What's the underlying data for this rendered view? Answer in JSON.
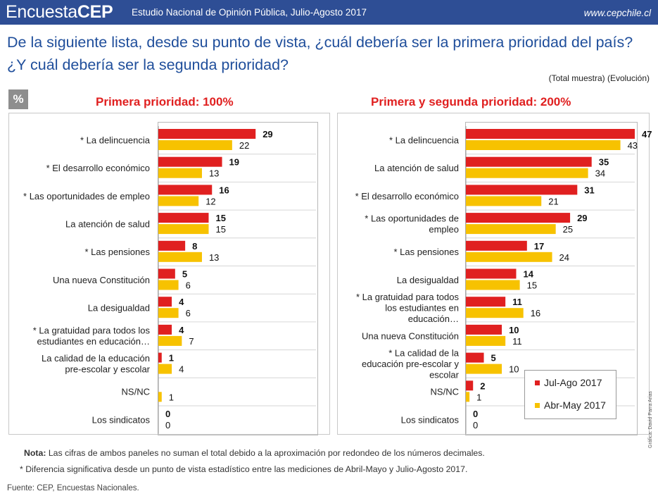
{
  "header": {
    "logo_light": "Encuesta",
    "logo_bold": "CEP",
    "subtitle": "Estudio Nacional de Opinión Pública, Julio-Agosto 2017",
    "url": "www.cepchile.cl"
  },
  "title": "De la siguiente lista, desde su punto de vista, ¿cuál debería ser la primera prioridad del país? ¿Y cuál debería ser la segunda prioridad?",
  "subtitle_right": "(Total muestra) (Evolución)",
  "percent_badge": "%",
  "colors": {
    "red": "#e02020",
    "yellow": "#f7c200",
    "header": "#2e4e95",
    "title": "#1f4e9b"
  },
  "chart_data": [
    {
      "type": "bar",
      "orientation": "horizontal",
      "title": "Primera prioridad: 100%",
      "categories": [
        "* La delincuencia",
        "* El desarrollo económico",
        "* Las oportunidades de empleo",
        "La atención de salud",
        "* Las pensiones",
        "Una nueva Constitución",
        "La desigualdad",
        "* La gratuidad para todos los estudiantes en educación…",
        "La calidad de la educación pre-escolar y escolar",
        "NS/NC",
        "Los sindicatos"
      ],
      "series": [
        {
          "name": "Jul-Ago 2017",
          "color": "#e02020",
          "values": [
            29,
            19,
            16,
            15,
            8,
            5,
            4,
            4,
            1,
            null,
            0
          ]
        },
        {
          "name": "Abr-May 2017",
          "color": "#f7c200",
          "values": [
            22,
            13,
            12,
            15,
            13,
            6,
            6,
            7,
            4,
            1,
            0
          ]
        }
      ],
      "xlim": [
        0,
        47
      ]
    },
    {
      "type": "bar",
      "orientation": "horizontal",
      "title": "Primera y segunda prioridad: 200%",
      "categories": [
        "* La delincuencia",
        "La atención de salud",
        "* El desarrollo económico",
        "* Las oportunidades de empleo",
        "* Las pensiones",
        "La desigualdad",
        "* La gratuidad para todos los estudiantes en educación…",
        "Una nueva Constitución",
        "* La calidad de la educación pre-escolar y escolar",
        "NS/NC",
        "Los sindicatos"
      ],
      "series": [
        {
          "name": "Jul-Ago 2017",
          "color": "#e02020",
          "values": [
            47,
            35,
            31,
            29,
            17,
            14,
            11,
            10,
            5,
            2,
            0
          ]
        },
        {
          "name": "Abr-May 2017",
          "color": "#f7c200",
          "values": [
            43,
            34,
            21,
            25,
            24,
            15,
            16,
            11,
            10,
            1,
            0
          ]
        }
      ],
      "xlim": [
        0,
        47
      ]
    }
  ],
  "legend": {
    "items": [
      "Jul-Ago 2017",
      "Abr-May 2017"
    ]
  },
  "notes": {
    "note_label": "Nota:",
    "note_text": " Las cifras de ambos paneles no suman el total debido a la aproximación por redondeo de los números decimales.",
    "significance": "* Diferencia significativa desde un punto de vista estadístico entre las mediciones de Abril-Mayo y Julio-Agosto 2017."
  },
  "source": "Fuente: CEP, Encuestas Nacionales.",
  "credit": "Gráfica: David Parra Arias"
}
